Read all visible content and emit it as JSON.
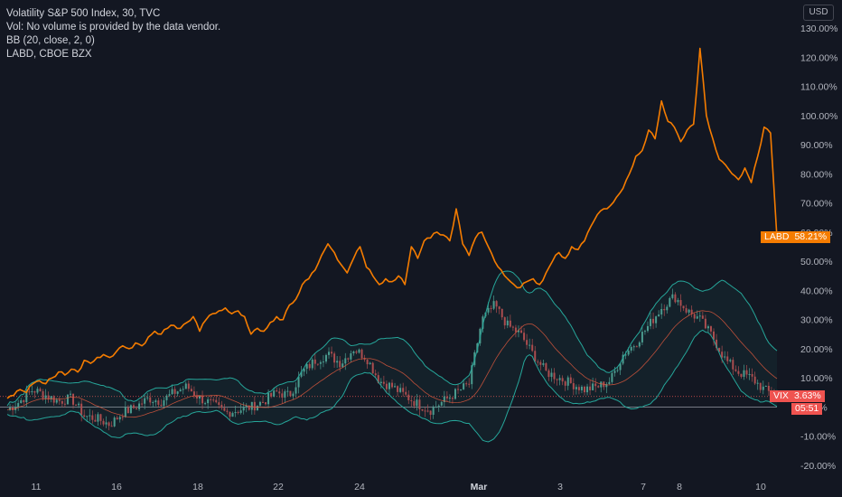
{
  "legend": {
    "title": "Volatility S&P 500 Index, 30, TVC",
    "volume_note": "Vol: No volume is provided by the data vendor.",
    "bb": "BB (20, close, 2, 0)",
    "compare": "LABD, CBOE BZX"
  },
  "currency": "USD",
  "colors": {
    "labd": "#f57c00",
    "bb_fill": "#26a69a",
    "basis": "#e65b3f",
    "vix_tag": "#ef5350",
    "labd_tag": "#f57c00",
    "up": "#4e9b8f",
    "down": "#b5464a"
  },
  "tags": {
    "labd": {
      "name": "LABD",
      "value": "58.21%"
    },
    "vix": {
      "name": "VIX",
      "value": "3.63%"
    },
    "countdown": "05:51"
  },
  "chart_data": {
    "type": "line",
    "y_axis": {
      "unit": "%",
      "min": -20,
      "max": 130,
      "ticks": [
        "130.00%",
        "120.00%",
        "110.00%",
        "100.00%",
        "90.00%",
        "80.00%",
        "70.00%",
        "60.00%",
        "50.00%",
        "40.00%",
        "30.00%",
        "20.00%",
        "10.00%",
        "0.00%",
        "-10.00%",
        "-20.00%"
      ]
    },
    "x_axis": {
      "ticks": [
        {
          "label": "11",
          "bold": false
        },
        {
          "label": "16",
          "bold": false
        },
        {
          "label": "18",
          "bold": false
        },
        {
          "label": "22",
          "bold": false
        },
        {
          "label": "24",
          "bold": false
        },
        {
          "label": "Mar",
          "bold": true
        },
        {
          "label": "3",
          "bold": false
        },
        {
          "label": "7",
          "bold": false
        },
        {
          "label": "8",
          "bold": false
        },
        {
          "label": "10",
          "bold": false
        }
      ]
    },
    "series": [
      {
        "name": "LABD",
        "x": [
          0,
          2,
          4,
          6,
          8,
          10,
          12,
          14,
          16,
          18,
          20,
          22,
          24,
          26,
          28,
          30,
          32,
          34,
          36,
          38,
          40,
          42,
          44,
          46,
          48,
          50,
          52,
          54,
          56,
          58,
          60,
          62,
          64,
          66,
          68,
          70,
          72,
          74,
          76,
          78,
          80,
          82,
          84,
          86,
          88,
          90,
          92,
          94,
          96,
          98,
          100,
          102,
          104,
          106,
          108,
          110,
          112,
          114,
          116,
          118,
          120,
          122,
          124,
          126,
          128,
          130,
          132,
          134,
          136,
          138,
          140,
          142,
          144,
          146,
          148,
          150,
          152,
          154,
          156,
          158,
          160,
          162,
          164,
          166,
          168,
          170,
          172,
          174,
          176,
          178,
          180,
          182,
          184,
          186,
          188,
          190,
          192,
          194,
          196,
          198,
          200,
          202,
          204,
          206,
          208,
          210,
          212,
          214,
          216,
          218,
          220,
          222,
          224,
          226,
          228,
          230,
          232,
          234,
          236,
          238,
          240
        ],
        "values": [
          3,
          4,
          6,
          5,
          8,
          9,
          8,
          10,
          12,
          11,
          13,
          12,
          16,
          15,
          17,
          18,
          17,
          19,
          21,
          20,
          22,
          21,
          24,
          26,
          25,
          27,
          28,
          27,
          29,
          31,
          26,
          30,
          32,
          33,
          34,
          32,
          33,
          31,
          25,
          27,
          26,
          29,
          31,
          30,
          35,
          37,
          42,
          44,
          47,
          52,
          56,
          53,
          49,
          46,
          51,
          55,
          48,
          45,
          42,
          44,
          43,
          45,
          42,
          55,
          51,
          57,
          58,
          60,
          59,
          57,
          68,
          56,
          52,
          58,
          60,
          55,
          50,
          47,
          44,
          42,
          41,
          43,
          44,
          42,
          46,
          50,
          53,
          51,
          55,
          54,
          57,
          62,
          66,
          68,
          69,
          72,
          75,
          80,
          86,
          88,
          95,
          92,
          105,
          98,
          96,
          91,
          95,
          97,
          123,
          100,
          92,
          85,
          83,
          80,
          78,
          82,
          77,
          86,
          96,
          94,
          58
        ],
        "last_value": 58.21
      },
      {
        "name": "VIX",
        "x": [
          0,
          4,
          8,
          12,
          16,
          20,
          24,
          28,
          32,
          36,
          40,
          44,
          48,
          52,
          56,
          60,
          64,
          68,
          72,
          76,
          80,
          84,
          88,
          92,
          96,
          100,
          104,
          108,
          112,
          116,
          120,
          124,
          128,
          132,
          136,
          140,
          144,
          148,
          152,
          156,
          160,
          164,
          168,
          172,
          176,
          180,
          184,
          188,
          192,
          196,
          200,
          204,
          208,
          212,
          216,
          220,
          224,
          228,
          232,
          236,
          240
        ],
        "values": [
          -1,
          2,
          6,
          4,
          2,
          3,
          -3,
          -4,
          -6,
          -2,
          0,
          3,
          2,
          5,
          7,
          3,
          1,
          -2,
          -1,
          0,
          2,
          5,
          4,
          12,
          16,
          18,
          15,
          20,
          17,
          9,
          7,
          4,
          1,
          -1,
          2,
          5,
          8,
          30,
          35,
          28,
          25,
          18,
          12,
          10,
          8,
          6,
          7,
          9,
          18,
          22,
          28,
          34,
          38,
          33,
          30,
          24,
          16,
          12,
          10,
          6,
          3.63
        ],
        "last_value": 3.63
      }
    ],
    "bollinger": {
      "period": 20,
      "source": "close",
      "mult": 2
    },
    "legend_placement": "top-left",
    "grid": false
  }
}
